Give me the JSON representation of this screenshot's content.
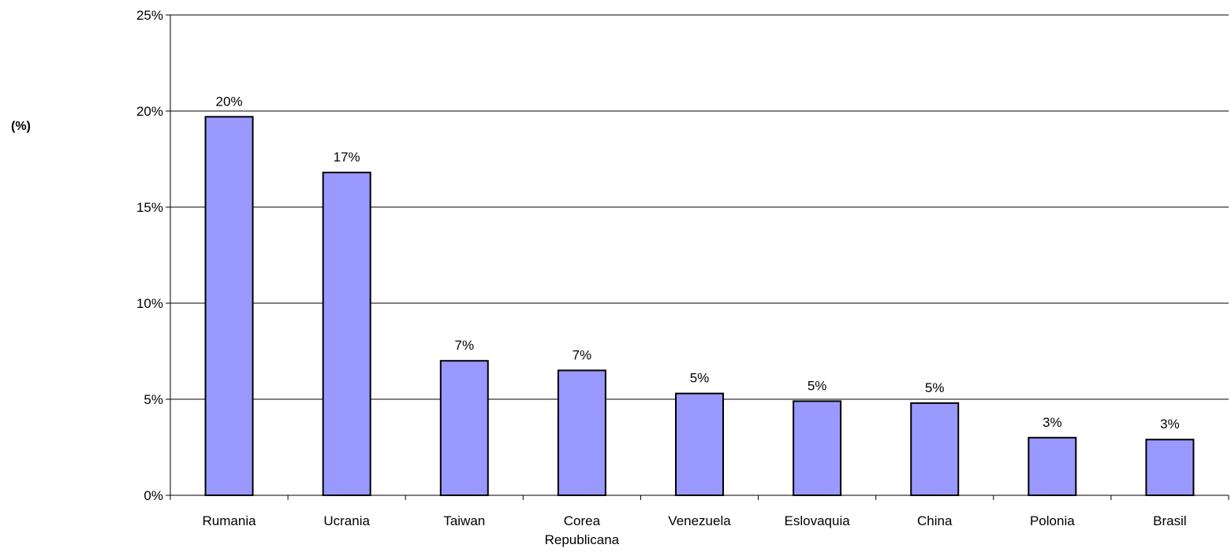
{
  "chart_data": {
    "type": "bar",
    "title": "",
    "xlabel": "",
    "ylabel": "(%)",
    "categories": [
      [
        "Rumania"
      ],
      [
        "Ucrania"
      ],
      [
        "Taiwan"
      ],
      [
        "Corea",
        "Republicana"
      ],
      [
        "Venezuela"
      ],
      [
        "Eslovaquia"
      ],
      [
        "China"
      ],
      [
        "Polonia"
      ],
      [
        "Brasil"
      ]
    ],
    "values": [
      19.7,
      16.8,
      7.0,
      6.5,
      5.3,
      4.9,
      4.8,
      3.0,
      2.9
    ],
    "data_labels": [
      "20%",
      "17%",
      "7%",
      "7%",
      "5%",
      "5%",
      "5%",
      "3%",
      "3%"
    ],
    "ylim": [
      0,
      25
    ],
    "yticks": [
      "0%",
      "5%",
      "10%",
      "15%",
      "20%",
      "25%"
    ],
    "grid": true,
    "legend": "none",
    "bar_color": "#9999FF",
    "bar_edge_color": "#000000"
  }
}
